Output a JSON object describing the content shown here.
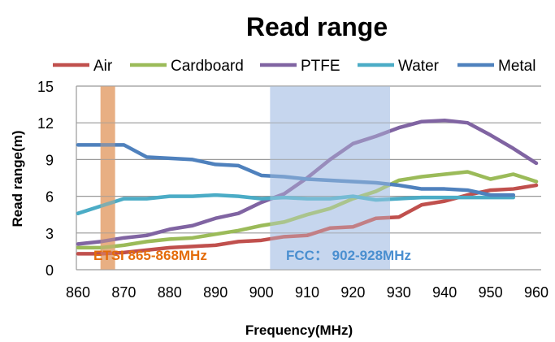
{
  "chart_data": {
    "type": "line",
    "title": "Read range",
    "xlabel": "Frequency(MHz)",
    "ylabel": "Read range(m)",
    "xlim": [
      860,
      960
    ],
    "ylim": [
      0,
      15
    ],
    "xticks": [
      860,
      870,
      880,
      890,
      900,
      910,
      920,
      930,
      940,
      950,
      960
    ],
    "yticks": [
      0,
      3,
      6,
      9,
      12,
      15
    ],
    "grid": "horizontal",
    "legend_position": "top",
    "x": [
      860,
      865,
      870,
      875,
      880,
      885,
      890,
      895,
      900,
      905,
      910,
      915,
      920,
      925,
      930,
      935,
      940,
      945,
      950,
      955,
      960
    ],
    "series": [
      {
        "name": "Air",
        "color": "#c0504d",
        "values": [
          1.3,
          1.3,
          1.4,
          1.6,
          1.8,
          1.9,
          2.0,
          2.3,
          2.4,
          2.7,
          2.8,
          3.4,
          3.5,
          4.2,
          4.3,
          5.3,
          5.6,
          6.1,
          6.5,
          6.6,
          6.9
        ]
      },
      {
        "name": "Cardboard",
        "color": "#9bbb59",
        "values": [
          1.8,
          1.8,
          2.0,
          2.3,
          2.5,
          2.6,
          2.9,
          3.2,
          3.6,
          3.9,
          4.5,
          5.0,
          5.8,
          6.4,
          7.3,
          7.6,
          7.8,
          8.0,
          7.4,
          7.8,
          7.2
        ]
      },
      {
        "name": "PTFE",
        "color": "#8064a2",
        "values": [
          2.1,
          2.3,
          2.6,
          2.8,
          3.3,
          3.6,
          4.2,
          4.6,
          5.5,
          6.2,
          7.5,
          9.0,
          10.3,
          10.9,
          11.6,
          12.1,
          12.2,
          12.0,
          11.0,
          9.9,
          8.7
        ]
      },
      {
        "name": "Water",
        "color": "#4bacc6",
        "values": [
          4.6,
          5.2,
          5.8,
          5.8,
          6.0,
          6.0,
          6.1,
          6.0,
          5.8,
          5.9,
          5.8,
          5.8,
          6.0,
          5.7,
          5.8,
          5.9,
          5.9,
          5.9,
          5.9,
          5.9,
          null
        ]
      },
      {
        "name": "Metal",
        "color": "#4f81bd",
        "values": [
          10.2,
          10.2,
          10.2,
          9.2,
          9.1,
          9.0,
          8.6,
          8.5,
          7.7,
          7.6,
          7.4,
          7.3,
          7.2,
          7.1,
          6.9,
          6.6,
          6.6,
          6.5,
          6.1,
          6.1,
          null
        ]
      }
    ],
    "bands": [
      {
        "label": "ETSI 865-868MHz",
        "range": [
          865,
          868
        ],
        "color": "#e9b083",
        "text_color": "#e46c0a"
      },
      {
        "label": "FCC： 902-928MHz",
        "range": [
          902,
          928
        ],
        "color": "#c6d6ee",
        "text_color": "#4a8fd0"
      }
    ]
  }
}
